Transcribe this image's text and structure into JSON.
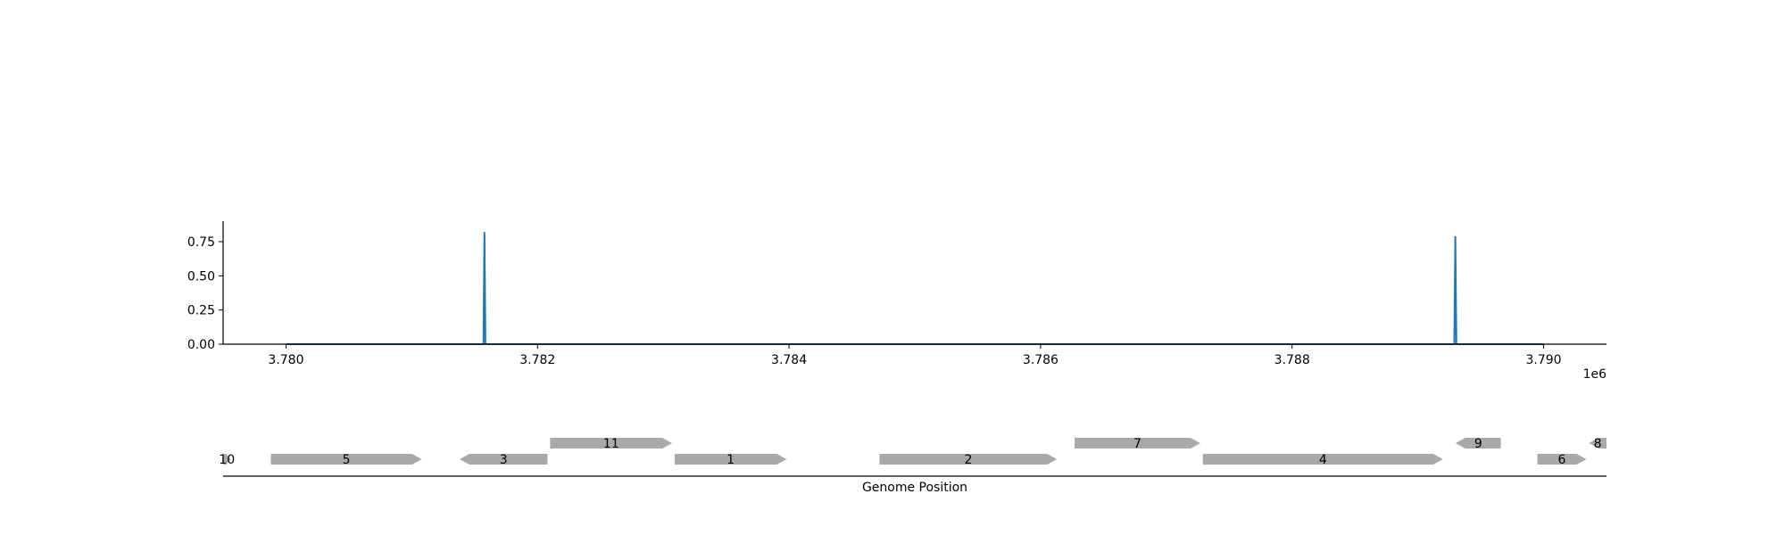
{
  "chart_data": [
    {
      "type": "line",
      "series": [
        {
          "color": "#1f77b4",
          "x": [
            3780000,
            3781570,
            3781578,
            3781586,
            3789290,
            3789298,
            3789306,
            3790000
          ],
          "y": [
            0.0,
            0.0,
            0.82,
            0.0,
            0.0,
            0.79,
            0.0,
            0.0
          ]
        }
      ],
      "xlim": [
        3779500,
        3790500
      ],
      "ylim": [
        0,
        0.9
      ],
      "x_ticks": [
        3780000,
        3782000,
        3784000,
        3786000,
        3788000,
        3790000
      ],
      "x_tick_labels": [
        "3.780",
        "3.782",
        "3.784",
        "3.786",
        "3.788",
        "3.790"
      ],
      "x_offset_label": "1e6",
      "y_ticks": [
        0.0,
        0.25,
        0.5,
        0.75
      ],
      "y_tick_labels": [
        "0.00",
        "0.25",
        "0.50",
        "0.75"
      ],
      "grid": false,
      "legend": "none"
    },
    {
      "type": "gene_track",
      "xlabel": "Genome Position",
      "xlim": [
        3779500,
        3790500
      ],
      "gene_color": "#a9a9a9",
      "genes": [
        {
          "label": "10",
          "start": 3779480,
          "end": 3779560,
          "strand": "+",
          "row": 0
        },
        {
          "label": "5",
          "start": 3779880,
          "end": 3781080,
          "strand": "+",
          "row": 0
        },
        {
          "label": "3",
          "start": 3781380,
          "end": 3782080,
          "strand": "-",
          "row": 0
        },
        {
          "label": "11",
          "start": 3782100,
          "end": 3783070,
          "strand": "+",
          "row": 1
        },
        {
          "label": "1",
          "start": 3783090,
          "end": 3783980,
          "strand": "+",
          "row": 0
        },
        {
          "label": "2",
          "start": 3784720,
          "end": 3786130,
          "strand": "+",
          "row": 0
        },
        {
          "label": "7",
          "start": 3786270,
          "end": 3787270,
          "strand": "+",
          "row": 1
        },
        {
          "label": "4",
          "start": 3787290,
          "end": 3789200,
          "strand": "+",
          "row": 0
        },
        {
          "label": "9",
          "start": 3789300,
          "end": 3789660,
          "strand": "-",
          "row": 1
        },
        {
          "label": "6",
          "start": 3789950,
          "end": 3790340,
          "strand": "+",
          "row": 0
        },
        {
          "label": "8",
          "start": 3790360,
          "end": 3790500,
          "strand": "-",
          "row": 1
        }
      ]
    }
  ]
}
